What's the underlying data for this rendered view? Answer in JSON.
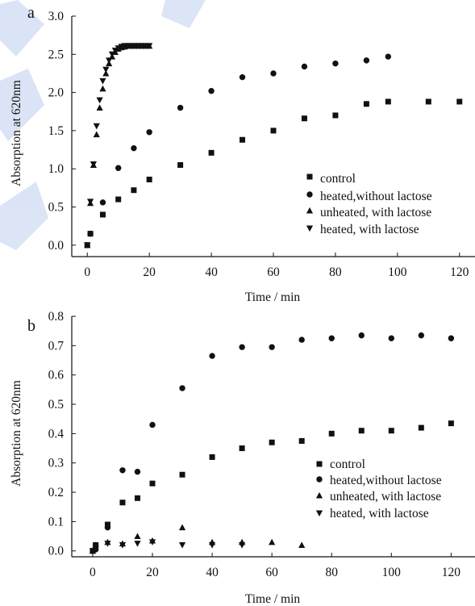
{
  "colors": {
    "marker": "#111111",
    "axis": "#111111",
    "decor": "#cfdcf3"
  },
  "chart_data": [
    {
      "panel_label": "a",
      "type": "scatter",
      "xlabel": "Time / min",
      "ylabel": "Absorption at 620nm",
      "xlim": [
        -5,
        125
      ],
      "ylim": [
        -0.15,
        3.0
      ],
      "xticks": [
        0,
        20,
        40,
        60,
        80,
        100,
        120
      ],
      "xtick_labels": [
        "0",
        "20",
        "40",
        "60",
        "80",
        "100",
        "120"
      ],
      "yticks": [
        0,
        0.5,
        1.0,
        1.5,
        2.0,
        2.5,
        3.0
      ],
      "ytick_labels": [
        "0.0",
        "0.5",
        "1.0",
        "1.5",
        "2.0",
        "2.5",
        "3.0"
      ],
      "legend_position": "lower-right",
      "series": [
        {
          "name": "control",
          "marker": "square",
          "x": [
            0,
            1,
            5,
            10,
            15,
            20,
            30,
            40,
            50,
            60,
            70,
            80,
            90,
            97,
            110,
            120
          ],
          "y": [
            0.0,
            0.15,
            0.4,
            0.6,
            0.72,
            0.86,
            1.05,
            1.21,
            1.38,
            1.5,
            1.66,
            1.7,
            1.85,
            1.88,
            1.88,
            1.88
          ]
        },
        {
          "name": "heated,without lactose",
          "marker": "circle",
          "x": [
            1,
            5,
            10,
            15,
            20,
            30,
            40,
            50,
            60,
            70,
            80,
            90,
            97
          ],
          "y": [
            0.15,
            0.56,
            1.01,
            1.27,
            1.48,
            1.8,
            2.02,
            2.2,
            2.25,
            2.34,
            2.38,
            2.42,
            2.47
          ]
        },
        {
          "name": "unheated, with lactose",
          "marker": "triangle-up",
          "x": [
            0,
            1,
            2,
            3,
            4,
            5,
            6,
            7,
            8,
            9,
            10,
            11,
            12,
            13,
            14,
            15,
            16,
            17,
            18,
            19,
            20
          ],
          "y": [
            0.0,
            0.55,
            1.05,
            1.45,
            1.8,
            2.05,
            2.25,
            2.38,
            2.47,
            2.53,
            2.57,
            2.59,
            2.6,
            2.61,
            2.61,
            2.61,
            2.61,
            2.61,
            2.61,
            2.61,
            2.61
          ]
        },
        {
          "name": "heated, with lactose",
          "marker": "triangle-down",
          "x": [
            0,
            1,
            2,
            3,
            4,
            5,
            6,
            7,
            8,
            9,
            10,
            11,
            12,
            13,
            14,
            15,
            16,
            17,
            18,
            19,
            20
          ],
          "y": [
            0.0,
            0.57,
            1.06,
            1.56,
            1.9,
            2.15,
            2.3,
            2.42,
            2.5,
            2.55,
            2.58,
            2.6,
            2.61,
            2.61,
            2.61,
            2.61,
            2.61,
            2.61,
            2.61,
            2.61,
            2.61
          ]
        }
      ]
    },
    {
      "panel_label": "b",
      "type": "scatter",
      "xlabel": "Time / min",
      "ylabel": "Absorption at 620nm",
      "xlim": [
        -7,
        128
      ],
      "ylim": [
        -0.02,
        0.8
      ],
      "xticks": [
        0,
        20,
        40,
        60,
        80,
        100,
        120
      ],
      "xtick_labels": [
        "0",
        "20",
        "40",
        "60",
        "80",
        "100",
        "120"
      ],
      "yticks": [
        0,
        0.1,
        0.2,
        0.3,
        0.4,
        0.5,
        0.6,
        0.7,
        0.8
      ],
      "ytick_labels": [
        "0.0",
        "0.1",
        "0.2",
        "0.3",
        "0.4",
        "0.5",
        "0.6",
        "0.7",
        "0.8"
      ],
      "legend_position": "lower-right",
      "series": [
        {
          "name": "control",
          "marker": "square",
          "x": [
            0,
            1,
            5,
            10,
            15,
            20,
            30,
            40,
            50,
            60,
            70,
            80,
            90,
            100,
            110,
            120
          ],
          "y": [
            0.0,
            0.02,
            0.09,
            0.165,
            0.18,
            0.23,
            0.26,
            0.32,
            0.35,
            0.37,
            0.375,
            0.4,
            0.41,
            0.41,
            0.42,
            0.435
          ]
        },
        {
          "name": "heated,without lactose",
          "marker": "circle",
          "x": [
            1,
            5,
            10,
            15,
            20,
            30,
            40,
            50,
            60,
            70,
            80,
            90,
            100,
            110,
            120
          ],
          "y": [
            0.005,
            0.08,
            0.275,
            0.27,
            0.43,
            0.555,
            0.665,
            0.695,
            0.695,
            0.72,
            0.725,
            0.735,
            0.725,
            0.735,
            0.725
          ]
        },
        {
          "name": "unheated, with lactose",
          "marker": "triangle-up",
          "x": [
            0,
            1,
            5,
            10,
            15,
            20,
            30,
            40,
            50,
            60,
            70
          ],
          "y": [
            0.0,
            0.02,
            0.03,
            0.025,
            0.05,
            0.035,
            0.08,
            0.03,
            0.03,
            0.03,
            0.02
          ]
        },
        {
          "name": "heated, with lactose",
          "marker": "triangle-down",
          "x": [
            0,
            1,
            5,
            10,
            15,
            20,
            30,
            40,
            50
          ],
          "y": [
            0.0,
            0.01,
            0.025,
            0.02,
            0.025,
            0.03,
            0.02,
            0.02,
            0.02
          ]
        }
      ]
    }
  ]
}
